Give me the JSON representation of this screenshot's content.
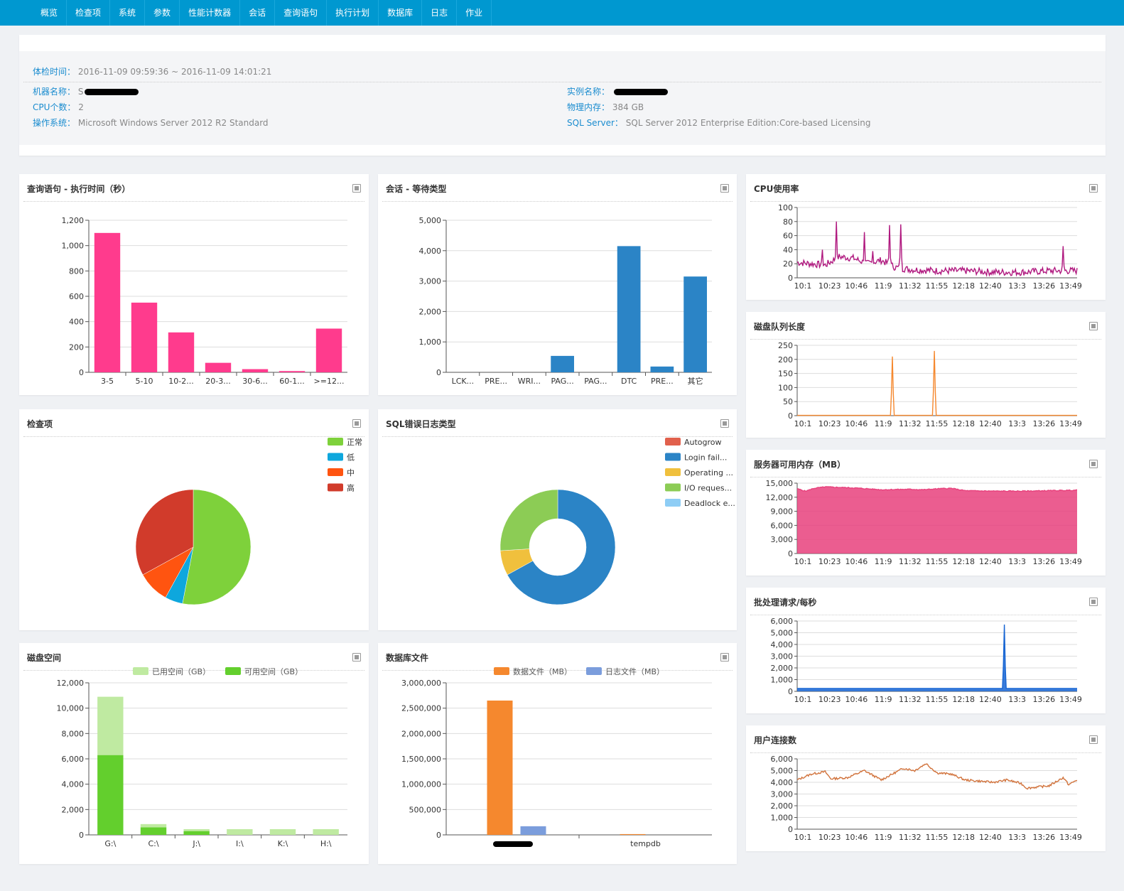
{
  "nav": [
    "概览",
    "检查项",
    "系统",
    "参数",
    "性能计数器",
    "会话",
    "查询语句",
    "执行计划",
    "数据库",
    "日志",
    "作业"
  ],
  "info": {
    "check_time_label": "体检时间：",
    "check_time_value": "2016-11-09 09:59:36 ~ 2016-11-09 14:01:21",
    "machine_label": "机器名称：",
    "machine_value": "S",
    "instance_label": "实例名称：",
    "instance_value": "",
    "cpu_label": "CPU个数：",
    "cpu_value": "2",
    "memory_label": "物理内存：",
    "memory_value": "384 GB",
    "os_label": "操作系统：",
    "os_value": "Microsoft Windows Server 2012 R2 Standard",
    "sql_label": "SQL Server：",
    "sql_value": "SQL Server 2012 Enterprise Edition:Core-based Licensing"
  },
  "panels": {
    "query_time": "查询语句 - 执行时间（秒）",
    "session_wait": "会话 - 等待类型",
    "cpu": "CPU使用率",
    "disk_queue": "磁盘队列长度",
    "memory": "服务器可用内存（MB）",
    "batch": "批处理请求/每秒",
    "connections": "用户连接数",
    "check_items": "检查项",
    "sql_errors": "SQL错误日志类型",
    "disk_space": "磁盘空间",
    "db_files": "数据库文件"
  },
  "colors": {
    "nav": "#0098d0",
    "pink": "#ff3b8d",
    "blue": "#2b84c6",
    "magenta": "#b0197f",
    "orange": "#f5882e",
    "memory": "#e8417c",
    "batch": "#1765d3",
    "conn": "#d1723b"
  },
  "time_ticks": [
    "10:1",
    "10:23",
    "10:46",
    "11:9",
    "11:32",
    "11:55",
    "12:18",
    "12:40",
    "13:3",
    "13:26",
    "13:49"
  ],
  "chart_data": [
    {
      "id": "query_time",
      "type": "bar",
      "categories": [
        "3-5",
        "5-10",
        "10-2...",
        "20-3...",
        "30-6...",
        "60-1...",
        ">=12..."
      ],
      "values": [
        1100,
        550,
        315,
        75,
        25,
        10,
        345
      ],
      "ylim": [
        0,
        1200
      ],
      "yticks": [
        0,
        200,
        400,
        600,
        800,
        1000,
        1200
      ]
    },
    {
      "id": "session_wait",
      "type": "bar",
      "categories": [
        "LCK...",
        "PRE...",
        "WRI...",
        "PAG...",
        "PAG...",
        "DTC",
        "PRE...",
        "其它"
      ],
      "values": [
        0,
        0,
        0,
        540,
        0,
        4150,
        190,
        3150
      ],
      "ylim": [
        0,
        5000
      ],
      "yticks": [
        0,
        1000,
        2000,
        3000,
        4000,
        5000
      ]
    },
    {
      "id": "check_items",
      "type": "pie",
      "labels": [
        "正常",
        "低",
        "中",
        "高"
      ],
      "values": [
        53,
        5,
        9,
        33
      ],
      "colors": [
        "#7ed13b",
        "#0ea7dd",
        "#ff5410",
        "#d13b2b"
      ]
    },
    {
      "id": "sql_errors",
      "type": "pie",
      "labels": [
        "Autogrow",
        "Login fail...",
        "Operating ...",
        "I/O reques...",
        "Deadlock e..."
      ],
      "values": [
        0,
        67,
        7,
        26,
        0
      ],
      "colors": [
        "#e1604c",
        "#2b84c6",
        "#f0c03d",
        "#8ccc55",
        "#8ecdf5"
      ]
    },
    {
      "id": "disk_space",
      "type": "bar",
      "categories": [
        "G:\\",
        "C:\\",
        "J:\\",
        "I:\\",
        "K:\\",
        "H:\\"
      ],
      "series": [
        {
          "name": "已用空间（GB）",
          "values": [
            4600,
            250,
            150,
            450,
            450,
            450
          ]
        },
        {
          "name": "可用空间（GB）",
          "values": [
            6300,
            600,
            300,
            0,
            0,
            0
          ]
        }
      ],
      "ylim": [
        0,
        12000
      ],
      "yticks": [
        0,
        2000,
        4000,
        6000,
        8000,
        10000,
        12000
      ]
    },
    {
      "id": "db_files",
      "type": "bar",
      "categories": [
        "",
        "tempdb"
      ],
      "series": [
        {
          "name": "数据文件（MB）",
          "values": [
            2650000,
            15000
          ]
        },
        {
          "name": "日志文件（MB）",
          "values": [
            170000,
            0
          ]
        }
      ],
      "ylim": [
        0,
        3000000
      ],
      "yticks": [
        0,
        500000,
        1000000,
        1500000,
        2000000,
        2500000,
        3000000
      ]
    },
    {
      "id": "cpu",
      "type": "line",
      "ylim": [
        0,
        100
      ],
      "yticks": [
        0,
        20,
        40,
        60,
        80,
        100
      ],
      "segments": [
        [
          0,
          22
        ],
        [
          0.1,
          18
        ],
        [
          0.15,
          30
        ],
        [
          0.2,
          28
        ],
        [
          0.25,
          20
        ],
        [
          0.3,
          25
        ],
        [
          0.35,
          15
        ],
        [
          0.4,
          12
        ],
        [
          0.5,
          10
        ],
        [
          0.6,
          10
        ],
        [
          0.7,
          8
        ],
        [
          0.8,
          8
        ],
        [
          0.9,
          10
        ],
        [
          1,
          10
        ]
      ],
      "spikes": [
        [
          0.14,
          80
        ],
        [
          0.24,
          65
        ],
        [
          0.33,
          75
        ],
        [
          0.37,
          76
        ],
        [
          0.95,
          45
        ],
        [
          0.09,
          40
        ],
        [
          0.27,
          38
        ]
      ]
    },
    {
      "id": "disk_queue",
      "type": "line",
      "ylim": [
        0,
        250
      ],
      "yticks": [
        0,
        50,
        100,
        150,
        200,
        250
      ],
      "spikes": [
        [
          0.34,
          210
        ],
        [
          0.49,
          230
        ]
      ]
    },
    {
      "id": "memory",
      "type": "area",
      "ylim": [
        0,
        15000
      ],
      "yticks": [
        0,
        3000,
        6000,
        9000,
        12000,
        15000
      ],
      "points": [
        [
          0,
          13800
        ],
        [
          0.03,
          13300
        ],
        [
          0.06,
          13900
        ],
        [
          0.1,
          14200
        ],
        [
          0.2,
          14000
        ],
        [
          0.3,
          13600
        ],
        [
          0.4,
          13700
        ],
        [
          0.45,
          13600
        ],
        [
          0.5,
          13800
        ],
        [
          0.55,
          13900
        ],
        [
          0.6,
          13400
        ],
        [
          0.7,
          13300
        ],
        [
          0.8,
          13300
        ],
        [
          0.9,
          13400
        ],
        [
          1,
          13500
        ]
      ]
    },
    {
      "id": "batch",
      "type": "area",
      "ylim": [
        0,
        6000
      ],
      "yticks": [
        0,
        1000,
        2000,
        3000,
        4000,
        5000,
        6000
      ],
      "spikes": [
        [
          0.74,
          5700
        ]
      ]
    },
    {
      "id": "connections",
      "type": "line",
      "ylim": [
        0,
        6000
      ],
      "yticks": [
        0,
        1000,
        2000,
        3000,
        4000,
        5000,
        6000
      ],
      "points": [
        [
          0,
          4200
        ],
        [
          0.05,
          4700
        ],
        [
          0.1,
          4900
        ],
        [
          0.12,
          4300
        ],
        [
          0.18,
          4400
        ],
        [
          0.24,
          5000
        ],
        [
          0.3,
          4200
        ],
        [
          0.38,
          5200
        ],
        [
          0.42,
          5000
        ],
        [
          0.46,
          5600
        ],
        [
          0.5,
          4800
        ],
        [
          0.55,
          4700
        ],
        [
          0.6,
          4200
        ],
        [
          0.65,
          4100
        ],
        [
          0.7,
          4000
        ],
        [
          0.75,
          4200
        ],
        [
          0.8,
          3900
        ],
        [
          0.82,
          3500
        ],
        [
          0.9,
          3700
        ],
        [
          0.95,
          4400
        ],
        [
          0.97,
          3800
        ],
        [
          1,
          4200
        ]
      ]
    }
  ]
}
